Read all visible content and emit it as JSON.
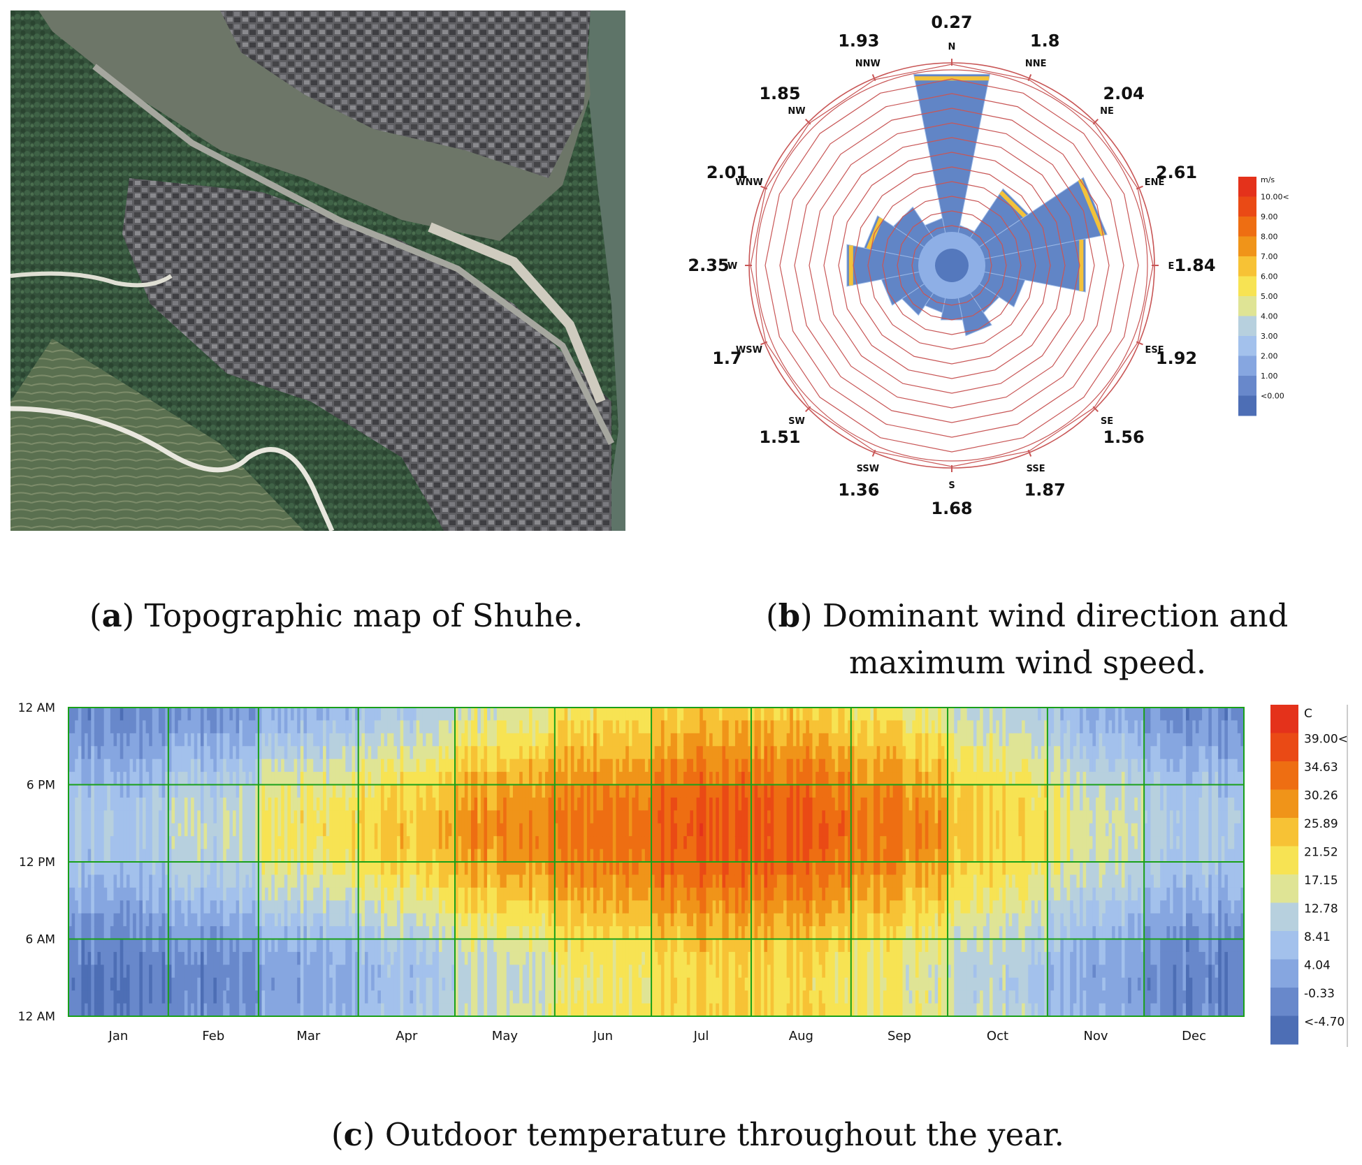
{
  "captions": {
    "a_letter": "a",
    "a_text": "Topographic map of Shuhe.",
    "b_letter": "b",
    "b_text_line1": "Dominant wind direction and",
    "b_text_line2": "maximum wind speed.",
    "c_letter": "c",
    "c_text": "Outdoor temperature throughout the year."
  },
  "map": {
    "description_free": true,
    "colors": {
      "forest": "#3a5a3a",
      "river": "#5d6e60",
      "town": "#5a5a5e",
      "road": "#e8e8e0"
    }
  },
  "chart_data": [
    {
      "type": "rose",
      "directions": [
        "N",
        "NNE",
        "NE",
        "ENE",
        "E",
        "ESE",
        "SE",
        "SSE",
        "S",
        "SSW",
        "SW",
        "WSW",
        "W",
        "WNW",
        "NW",
        "NNW"
      ],
      "max_speed_labels": [
        "0.27",
        "1.8",
        "2.04",
        "2.61",
        "1.84",
        "1.92",
        "1.56",
        "1.87",
        "1.68",
        "1.36",
        "1.51",
        "1.7",
        "2.35",
        "2.01",
        "1.85",
        "1.93"
      ],
      "frequency_rings": 12,
      "petal_length_rings": [
        11,
        0.5,
        4.0,
        8.5,
        7.0,
        2.8,
        1.6,
        2.6,
        1.5,
        1.0,
        1.8,
        2.6,
        5.0,
        3.8,
        2.5,
        1.0
      ],
      "legend": {
        "unit": "m/s",
        "labels": [
          "10.00<",
          "9.00",
          "8.00",
          "7.00",
          "6.00",
          "5.00",
          "4.00",
          "3.00",
          "2.00",
          "1.00",
          "<0.00"
        ],
        "colors": [
          "#e4321b",
          "#ea4a15",
          "#ee6e12",
          "#f09419",
          "#f7c235",
          "#f7e353",
          "#dfe495",
          "#b7d0de",
          "#a3c1ec",
          "#86a6e0",
          "#6888cb",
          "#4d6eb5"
        ]
      },
      "colors": {
        "ring": "#c85656",
        "petal_base": "#6185c6",
        "petal_light": "#9ab8e6"
      }
    },
    {
      "type": "heatmap",
      "x_label": "",
      "y_label": "",
      "months": [
        "Jan",
        "Feb",
        "Mar",
        "Apr",
        "May",
        "Jun",
        "Jul",
        "Aug",
        "Sep",
        "Oct",
        "Nov",
        "Dec"
      ],
      "y_ticks": [
        "12 AM",
        "6 PM",
        "12 PM",
        "6 AM",
        "12 AM"
      ],
      "monthly_mean_temperature": [
        4.5,
        6.5,
        11.5,
        15.5,
        20.5,
        23.5,
        27.0,
        26.0,
        22.0,
        16.5,
        10.0,
        5.0
      ],
      "diurnal_amplitude": [
        5,
        6,
        7,
        7,
        7,
        6,
        6,
        6,
        6,
        5,
        5,
        5
      ],
      "legend": {
        "unit": "C",
        "labels": [
          "39.00<",
          "34.63",
          "30.26",
          "25.89",
          "21.52",
          "17.15",
          "12.78",
          "8.41",
          "4.04",
          "-0.33",
          "<-4.70"
        ],
        "min": -4.7,
        "max": 39.0,
        "colors": [
          "#e4321b",
          "#ea4a15",
          "#ee6e12",
          "#f09419",
          "#f7c235",
          "#f7e353",
          "#dfe495",
          "#b7d0de",
          "#a3c1ec",
          "#86a6e0",
          "#6888cb",
          "#4d6eb5"
        ]
      },
      "grid_color": "#19a019"
    }
  ]
}
